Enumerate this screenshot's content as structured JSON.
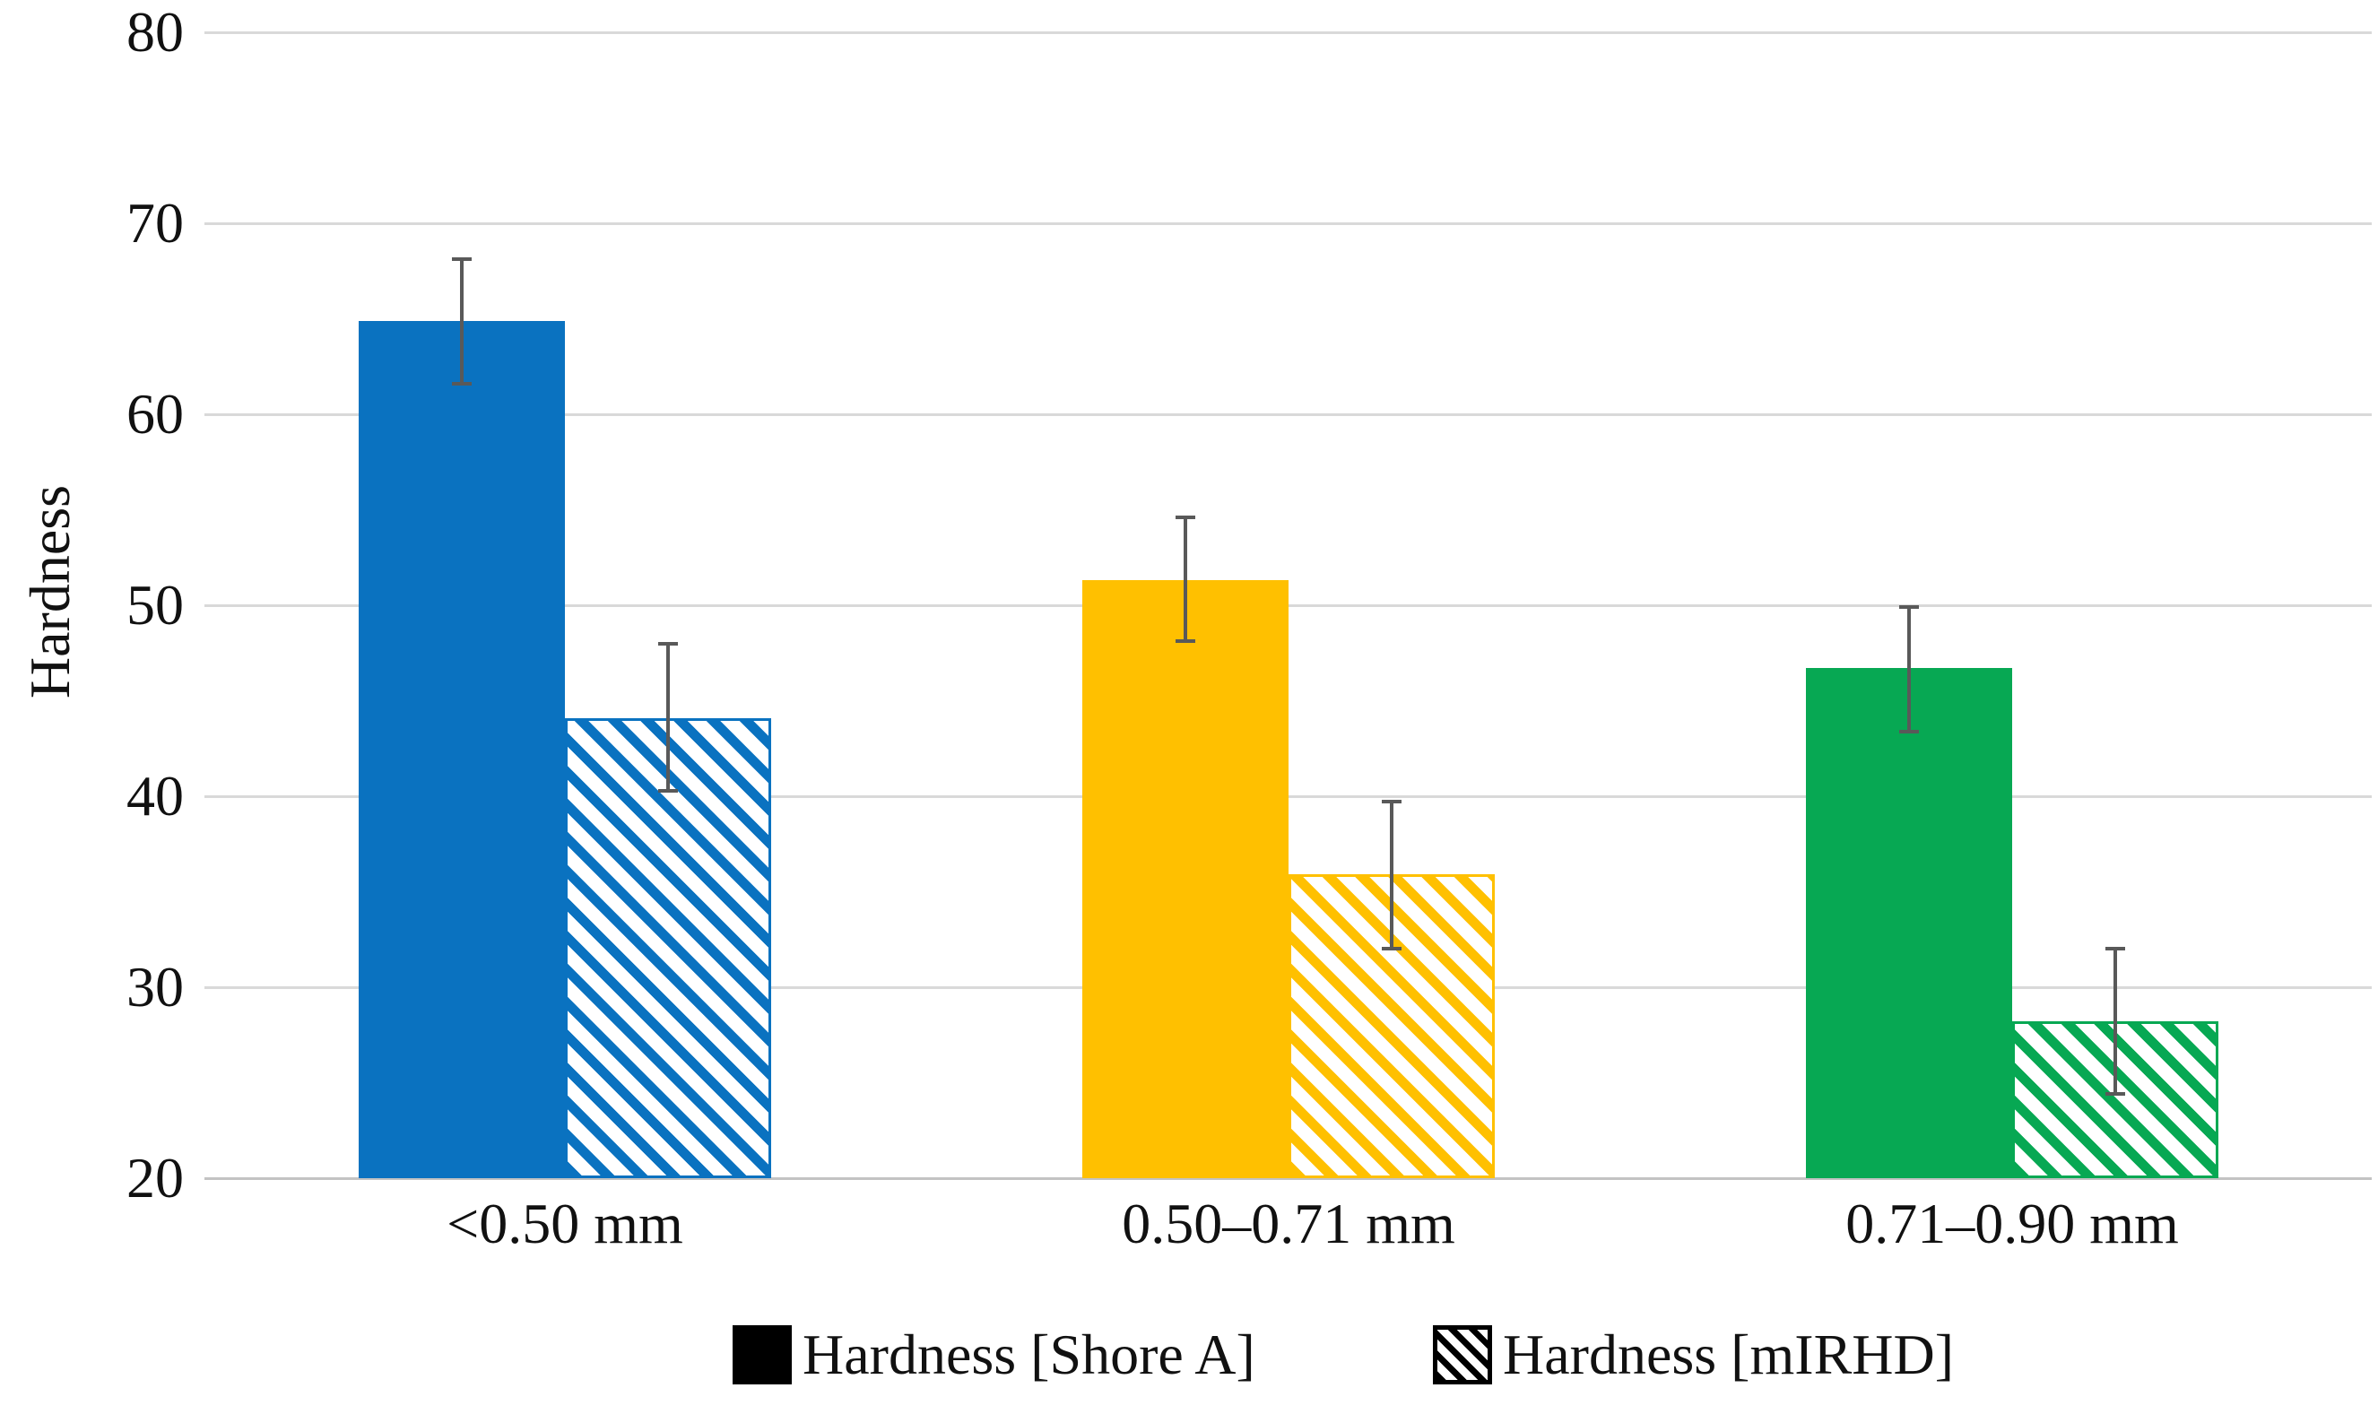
{
  "chart_data": {
    "type": "bar",
    "title": "",
    "xlabel": "",
    "ylabel": "Hardness",
    "categories": [
      "<0.50 mm",
      "0.50–0.71 mm",
      "0.71–0.90 mm"
    ],
    "series": [
      {
        "name": "Hardness [Shore A]",
        "pattern": "solid",
        "values": [
          64.9,
          51.3,
          46.7
        ],
        "err_low": [
          61.6,
          48.1,
          43.4
        ],
        "err_high": [
          68.1,
          54.6,
          49.9
        ]
      },
      {
        "name": "Hardness [mIRHD]",
        "pattern": "hatched",
        "values": [
          44.1,
          35.9,
          28.2
        ],
        "err_low": [
          40.3,
          32.0,
          24.4
        ],
        "err_high": [
          48.0,
          39.7,
          32.0
        ]
      }
    ],
    "group_colors": [
      "#0A72C0",
      "#FFC000",
      "#07A853"
    ],
    "ylim": [
      20,
      80
    ],
    "yticks": [
      80,
      70,
      60,
      50,
      40,
      30,
      20
    ],
    "grid": "horizontal",
    "gridline_color": "#D9D9D9",
    "axis_line_color": "#C3C3C3",
    "error_bar_color": "#595959",
    "legend_position": "bottom"
  }
}
